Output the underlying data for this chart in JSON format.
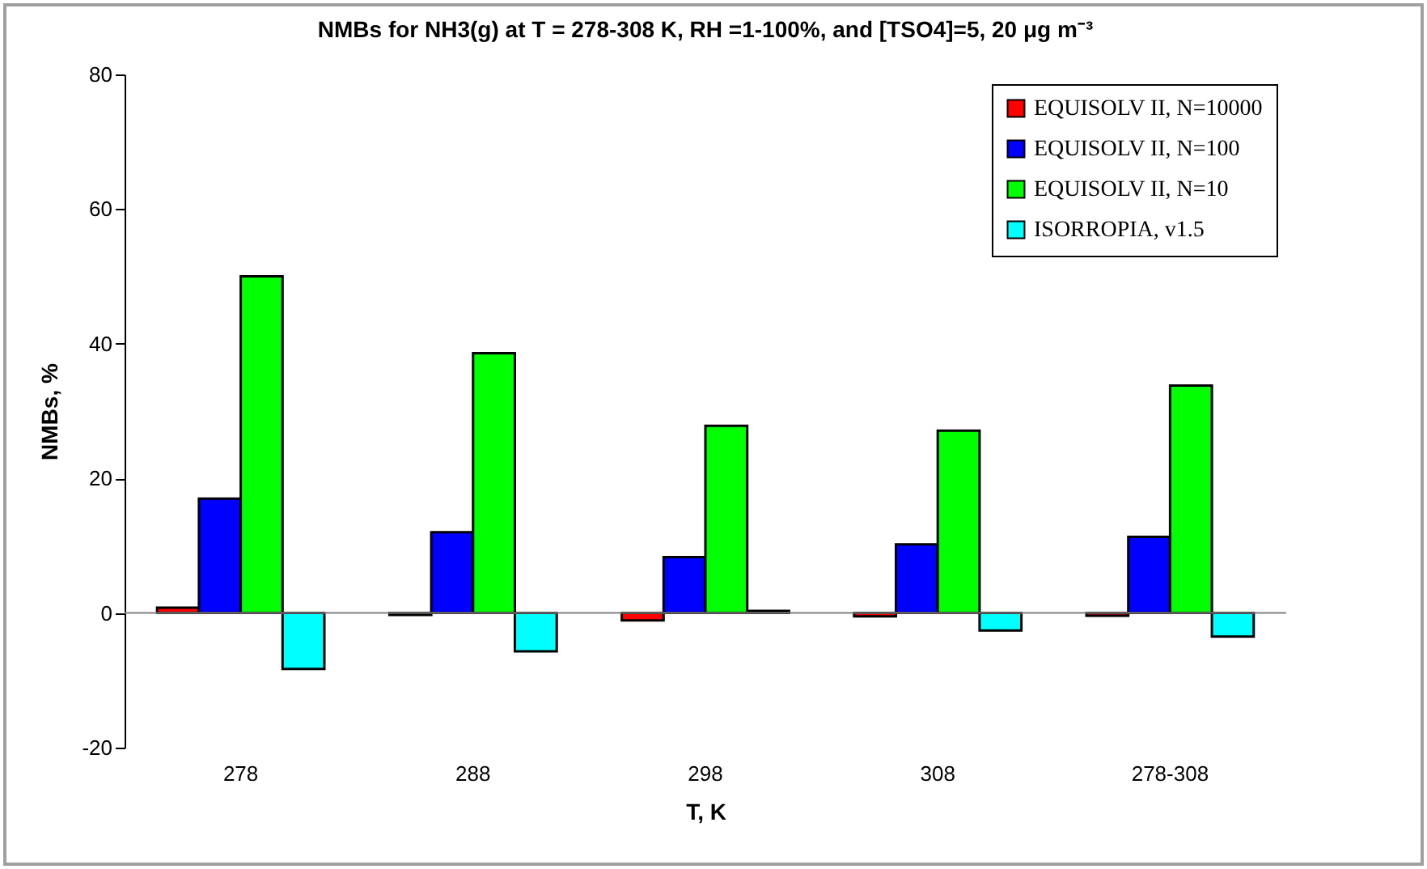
{
  "chart_data": {
    "type": "bar",
    "title": "NMBs for NH3(g) at T = 278-308 K, RH =1-100%, and [TSO4]=5, 20 μg\nm⁻³",
    "xlabel": "T, K",
    "ylabel": "NMBs, %",
    "categories": [
      "278",
      "288",
      "298",
      "308",
      "278-308"
    ],
    "series": [
      {
        "name": "EQUISOLV II, N=10000",
        "color": "#ff0000",
        "values": [
          0.8,
          -0.3,
          -1.1,
          -0.5,
          -0.4
        ]
      },
      {
        "name": "EQUISOLV II, N=100",
        "color": "#0000ff",
        "values": [
          17.0,
          12.0,
          8.3,
          10.2,
          11.3
        ]
      },
      {
        "name": "EQUISOLV II, N=10",
        "color": "#00ff00",
        "values": [
          50,
          38.6,
          27.8,
          27.1,
          33.8
        ]
      },
      {
        "name": "ISORROPIA, v1.5",
        "color": "#00ffff",
        "values": [
          -8.3,
          -5.7,
          0.3,
          -2.6,
          -3.5
        ]
      }
    ],
    "ylim": [
      -20,
      80
    ],
    "yticks": [
      -20,
      0,
      20,
      40,
      60,
      80
    ],
    "grid": false,
    "legend": "top right",
    "ref_lines": [
      {
        "axis": "y",
        "value": 0,
        "color": "#808080"
      }
    ]
  }
}
